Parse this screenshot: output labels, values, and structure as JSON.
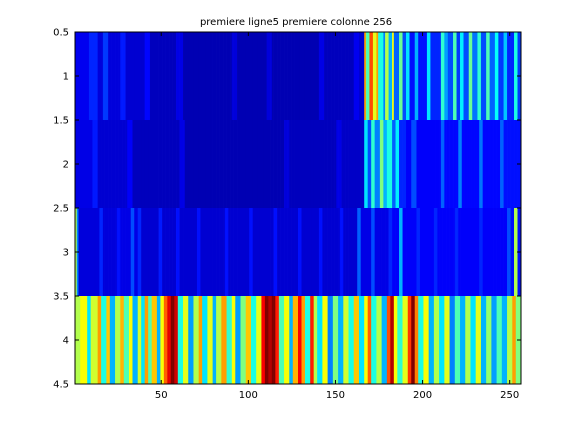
{
  "chart_data": {
    "type": "heatmap",
    "title": "premiere ligne5 premiere colonne 256",
    "xlabel": "",
    "ylabel": "",
    "colormap": "jet",
    "clim": [
      0,
      1
    ],
    "xlim": [
      0.5,
      256.5
    ],
    "ylim": [
      0.5,
      4.5
    ],
    "y_reversed": true,
    "x_ticks": [
      50,
      100,
      150,
      200,
      250
    ],
    "x_tick_labels": [
      "50",
      "100",
      "150",
      "200",
      "250"
    ],
    "y_ticks": [
      0.5,
      1,
      1.5,
      2,
      2.5,
      3,
      3.5,
      4,
      4.5
    ],
    "y_tick_labels": [
      "0.5",
      "1",
      "1.5",
      "2",
      "2.5",
      "3",
      "3.5",
      "4",
      "4.5"
    ],
    "rows": [
      {
        "row": 1,
        "default": 0.09,
        "segments": [
          [
            1,
            8,
            0.11
          ],
          [
            9,
            13,
            0.16
          ],
          [
            14,
            16,
            0.09
          ],
          [
            17,
            19,
            0.18
          ],
          [
            20,
            26,
            0.09
          ],
          [
            27,
            29,
            0.15
          ],
          [
            30,
            40,
            0.08
          ],
          [
            41,
            43,
            0.13
          ],
          [
            44,
            58,
            0.06
          ],
          [
            59,
            62,
            0.1
          ],
          [
            63,
            90,
            0.05
          ],
          [
            91,
            93,
            0.09
          ],
          [
            94,
            110,
            0.05
          ],
          [
            111,
            113,
            0.09
          ],
          [
            114,
            140,
            0.05
          ],
          [
            141,
            143,
            0.1
          ],
          [
            144,
            160,
            0.06
          ],
          [
            161,
            163,
            0.11
          ],
          [
            164,
            166,
            0.08
          ],
          [
            167,
            167,
            0.72
          ],
          [
            168,
            169,
            0.45
          ],
          [
            170,
            171,
            0.8
          ],
          [
            172,
            173,
            0.6
          ],
          [
            174,
            174,
            0.72
          ],
          [
            175,
            177,
            0.4
          ],
          [
            178,
            178,
            0.25
          ],
          [
            179,
            180,
            0.55
          ],
          [
            181,
            182,
            0.3
          ],
          [
            183,
            183,
            0.62
          ],
          [
            184,
            186,
            0.22
          ],
          [
            187,
            188,
            0.48
          ],
          [
            189,
            190,
            0.2
          ],
          [
            191,
            192,
            0.35
          ],
          [
            193,
            195,
            0.14
          ],
          [
            196,
            197,
            0.3
          ],
          [
            198,
            202,
            0.14
          ],
          [
            203,
            204,
            0.35
          ],
          [
            205,
            210,
            0.16
          ],
          [
            211,
            212,
            0.42
          ],
          [
            213,
            214,
            0.28
          ],
          [
            215,
            217,
            0.2
          ],
          [
            218,
            219,
            0.45
          ],
          [
            220,
            221,
            0.18
          ],
          [
            222,
            223,
            0.36
          ],
          [
            224,
            226,
            0.2
          ],
          [
            227,
            228,
            0.48
          ],
          [
            229,
            231,
            0.24
          ],
          [
            232,
            233,
            0.42
          ],
          [
            234,
            236,
            0.2
          ],
          [
            237,
            238,
            0.45
          ],
          [
            239,
            241,
            0.22
          ],
          [
            242,
            243,
            0.38
          ],
          [
            244,
            246,
            0.18
          ],
          [
            247,
            248,
            0.32
          ],
          [
            249,
            252,
            0.16
          ],
          [
            253,
            254,
            0.4
          ],
          [
            255,
            256,
            0.18
          ]
        ]
      },
      {
        "row": 2,
        "default": 0.09,
        "segments": [
          [
            1,
            10,
            0.1
          ],
          [
            11,
            13,
            0.15
          ],
          [
            14,
            30,
            0.08
          ],
          [
            31,
            33,
            0.12
          ],
          [
            34,
            60,
            0.06
          ],
          [
            61,
            63,
            0.1
          ],
          [
            64,
            120,
            0.05
          ],
          [
            121,
            123,
            0.09
          ],
          [
            124,
            150,
            0.06
          ],
          [
            151,
            153,
            0.1
          ],
          [
            154,
            166,
            0.07
          ],
          [
            167,
            168,
            0.35
          ],
          [
            169,
            170,
            0.2
          ],
          [
            171,
            172,
            0.42
          ],
          [
            173,
            175,
            0.25
          ],
          [
            176,
            177,
            0.5
          ],
          [
            178,
            179,
            0.3
          ],
          [
            180,
            182,
            0.4
          ],
          [
            183,
            184,
            0.22
          ],
          [
            185,
            186,
            0.36
          ],
          [
            187,
            190,
            0.16
          ],
          [
            191,
            193,
            0.12
          ],
          [
            194,
            196,
            0.2
          ],
          [
            197,
            210,
            0.12
          ],
          [
            211,
            212,
            0.22
          ],
          [
            213,
            220,
            0.13
          ],
          [
            221,
            222,
            0.25
          ],
          [
            223,
            232,
            0.13
          ],
          [
            233,
            234,
            0.24
          ],
          [
            235,
            244,
            0.13
          ],
          [
            245,
            246,
            0.22
          ],
          [
            247,
            256,
            0.14
          ]
        ]
      },
      {
        "row": 3,
        "default": 0.09,
        "segments": [
          [
            1,
            1,
            0.55
          ],
          [
            2,
            2,
            0.25
          ],
          [
            3,
            14,
            0.09
          ],
          [
            15,
            16,
            0.16
          ],
          [
            17,
            24,
            0.09
          ],
          [
            25,
            26,
            0.14
          ],
          [
            27,
            32,
            0.1
          ],
          [
            33,
            34,
            0.2
          ],
          [
            35,
            36,
            0.1
          ],
          [
            37,
            38,
            0.16
          ],
          [
            39,
            48,
            0.08
          ],
          [
            49,
            50,
            0.15
          ],
          [
            51,
            58,
            0.08
          ],
          [
            59,
            60,
            0.14
          ],
          [
            61,
            70,
            0.08
          ],
          [
            71,
            72,
            0.14
          ],
          [
            73,
            86,
            0.08
          ],
          [
            87,
            88,
            0.14
          ],
          [
            89,
            100,
            0.08
          ],
          [
            101,
            102,
            0.14
          ],
          [
            103,
            114,
            0.08
          ],
          [
            115,
            116,
            0.14
          ],
          [
            117,
            128,
            0.08
          ],
          [
            129,
            130,
            0.14
          ],
          [
            131,
            140,
            0.08
          ],
          [
            141,
            142,
            0.14
          ],
          [
            143,
            152,
            0.08
          ],
          [
            153,
            154,
            0.14
          ],
          [
            155,
            162,
            0.08
          ],
          [
            163,
            164,
            0.22
          ],
          [
            165,
            170,
            0.1
          ],
          [
            171,
            172,
            0.2
          ],
          [
            173,
            180,
            0.1
          ],
          [
            181,
            182,
            0.16
          ],
          [
            183,
            186,
            0.12
          ],
          [
            187,
            188,
            0.3
          ],
          [
            189,
            196,
            0.12
          ],
          [
            197,
            198,
            0.16
          ],
          [
            199,
            206,
            0.12
          ],
          [
            207,
            208,
            0.16
          ],
          [
            209,
            218,
            0.12
          ],
          [
            219,
            220,
            0.16
          ],
          [
            221,
            232,
            0.12
          ],
          [
            233,
            234,
            0.16
          ],
          [
            235,
            248,
            0.12
          ],
          [
            249,
            250,
            0.2
          ],
          [
            251,
            252,
            0.14
          ],
          [
            253,
            254,
            0.55
          ],
          [
            255,
            256,
            0.14
          ]
        ]
      },
      {
        "row": 4,
        "default": 0.55,
        "segments": [
          [
            1,
            3,
            0.55
          ],
          [
            4,
            7,
            0.62
          ],
          [
            8,
            9,
            0.35
          ],
          [
            10,
            13,
            0.58
          ],
          [
            14,
            15,
            0.72
          ],
          [
            16,
            18,
            0.4
          ],
          [
            19,
            20,
            0.68
          ],
          [
            21,
            23,
            0.3
          ],
          [
            24,
            26,
            0.55
          ],
          [
            27,
            28,
            0.7
          ],
          [
            29,
            31,
            0.45
          ],
          [
            32,
            33,
            0.62
          ],
          [
            34,
            36,
            0.3
          ],
          [
            37,
            38,
            0.58
          ],
          [
            39,
            40,
            0.35
          ],
          [
            41,
            42,
            0.72
          ],
          [
            43,
            44,
            0.45
          ],
          [
            45,
            47,
            0.68
          ],
          [
            48,
            49,
            0.3
          ],
          [
            50,
            51,
            0.62
          ],
          [
            52,
            53,
            0.78
          ],
          [
            54,
            55,
            0.9
          ],
          [
            56,
            57,
            1.0
          ],
          [
            58,
            59,
            0.92
          ],
          [
            60,
            62,
            0.4
          ],
          [
            63,
            65,
            0.6
          ],
          [
            66,
            68,
            0.28
          ],
          [
            69,
            71,
            0.55
          ],
          [
            72,
            73,
            0.72
          ],
          [
            74,
            76,
            0.35
          ],
          [
            77,
            79,
            0.6
          ],
          [
            80,
            81,
            0.3
          ],
          [
            82,
            84,
            0.55
          ],
          [
            85,
            87,
            0.72
          ],
          [
            88,
            90,
            0.42
          ],
          [
            91,
            92,
            0.62
          ],
          [
            93,
            95,
            0.28
          ],
          [
            96,
            98,
            0.5
          ],
          [
            99,
            101,
            0.68
          ],
          [
            102,
            104,
            0.4
          ],
          [
            105,
            107,
            0.6
          ],
          [
            108,
            109,
            0.88
          ],
          [
            110,
            111,
            1.0
          ],
          [
            112,
            113,
            0.95
          ],
          [
            114,
            115,
            1.0
          ],
          [
            116,
            117,
            0.85
          ],
          [
            118,
            120,
            0.45
          ],
          [
            121,
            123,
            0.62
          ],
          [
            124,
            125,
            0.3
          ],
          [
            126,
            128,
            0.7
          ],
          [
            129,
            130,
            0.88
          ],
          [
            131,
            132,
            0.72
          ],
          [
            133,
            135,
            0.4
          ],
          [
            136,
            137,
            0.85
          ],
          [
            138,
            139,
            0.55
          ],
          [
            140,
            142,
            0.35
          ],
          [
            143,
            145,
            0.62
          ],
          [
            146,
            148,
            0.25
          ],
          [
            149,
            151,
            0.5
          ],
          [
            152,
            154,
            0.3
          ],
          [
            155,
            157,
            0.58
          ],
          [
            158,
            160,
            0.4
          ],
          [
            161,
            163,
            0.68
          ],
          [
            164,
            166,
            0.35
          ],
          [
            167,
            168,
            0.62
          ],
          [
            169,
            170,
            0.78
          ],
          [
            171,
            173,
            0.4
          ],
          [
            174,
            176,
            0.55
          ],
          [
            177,
            179,
            0.3
          ],
          [
            180,
            181,
            0.8
          ],
          [
            182,
            183,
            0.95
          ],
          [
            184,
            185,
            0.62
          ],
          [
            186,
            188,
            0.42
          ],
          [
            189,
            191,
            0.6
          ],
          [
            192,
            193,
            0.82
          ],
          [
            194,
            195,
            1.0
          ],
          [
            196,
            197,
            0.75
          ],
          [
            198,
            200,
            0.4
          ],
          [
            201,
            203,
            0.62
          ],
          [
            204,
            206,
            0.3
          ],
          [
            207,
            209,
            0.55
          ],
          [
            210,
            212,
            0.35
          ],
          [
            213,
            215,
            0.6
          ],
          [
            216,
            218,
            0.25
          ],
          [
            219,
            221,
            0.45
          ],
          [
            222,
            224,
            0.3
          ],
          [
            225,
            227,
            0.55
          ],
          [
            228,
            230,
            0.35
          ],
          [
            231,
            233,
            0.6
          ],
          [
            234,
            236,
            0.3
          ],
          [
            237,
            239,
            0.52
          ],
          [
            240,
            242,
            0.28
          ],
          [
            243,
            245,
            0.45
          ],
          [
            246,
            248,
            0.3
          ],
          [
            249,
            251,
            0.55
          ],
          [
            252,
            253,
            0.72
          ],
          [
            254,
            256,
            0.5
          ]
        ]
      }
    ]
  }
}
